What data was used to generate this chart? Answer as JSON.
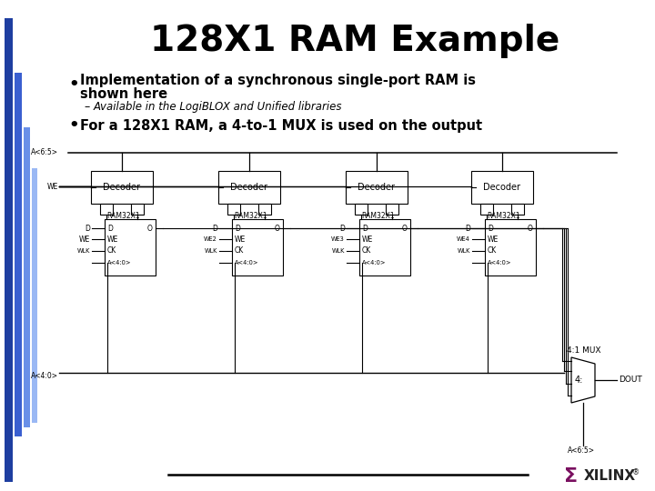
{
  "title": "128X1 RAM Example",
  "bullet1_line1": "Implementation of a synchronous single-port RAM is",
  "bullet1_line2": "shown here",
  "sub_bullet": "Available in the LogiBLOX and Unified libraries",
  "bullet2": "For a 128X1 RAM, a 4-to-1 MUX is used on the output",
  "bg_color": "#ffffff",
  "title_color": "#000000",
  "left_bar_colors": [
    "#1a3a9c",
    "#3a5bc7",
    "#6a8fe4",
    "#9ab8f4"
  ],
  "xilinx_maroon": "#7a1060"
}
